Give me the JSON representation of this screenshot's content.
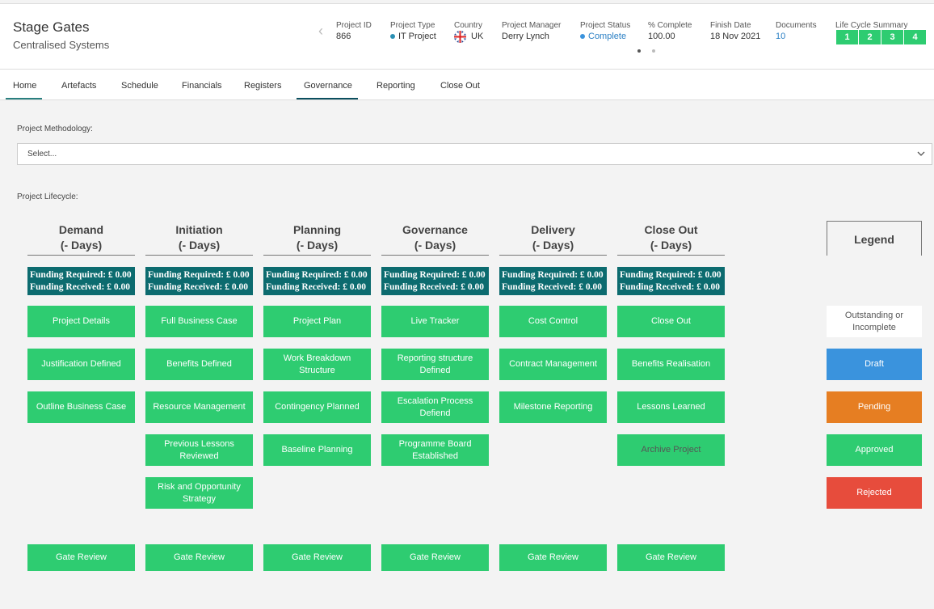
{
  "header": {
    "title": "Stage Gates",
    "subtitle": "Centralised Systems",
    "fields": [
      {
        "label": "Project ID",
        "value": "866"
      },
      {
        "label": "Project Type",
        "value": "IT Project"
      },
      {
        "label": "Country",
        "value": "UK"
      },
      {
        "label": "Project Manager",
        "value": "Derry Lynch"
      },
      {
        "label": "Project Status",
        "value": "Complete"
      },
      {
        "label": "% Complete",
        "value": "100.00"
      },
      {
        "label": "Finish Date",
        "value": "18 Nov 2021"
      },
      {
        "label": "Documents",
        "value": "10"
      }
    ],
    "lifecycle_summary": {
      "label": "Life Cycle Summary",
      "steps": [
        "1",
        "2",
        "3",
        "4"
      ]
    }
  },
  "tabs": [
    "Home",
    "Artefacts",
    "Schedule",
    "Financials",
    "Registers",
    "Governance",
    "Reporting",
    "Close Out"
  ],
  "methodology": {
    "label": "Project Methodology:",
    "placeholder": "Select..."
  },
  "lifecycle": {
    "label": "Project Lifecycle:",
    "stages": [
      {
        "name": "Demand",
        "days": "(- Days)",
        "funding_required": "Funding Required: £ 0.00",
        "funding_received": "Funding Received: £ 0.00",
        "items": [
          "Project Details",
          "Justification Defined",
          "Outline Business Case"
        ],
        "gate": "Gate Review"
      },
      {
        "name": "Initiation",
        "days": "(- Days)",
        "funding_required": "Funding Required: £ 0.00",
        "funding_received": "Funding Received: £ 0.00",
        "items": [
          "Full Business Case",
          "Benefits Defined",
          "Resource Management",
          "Previous Lessons Reviewed",
          "Risk and Opportunity Strategy"
        ],
        "gate": "Gate Review"
      },
      {
        "name": "Planning",
        "days": "(- Days)",
        "funding_required": "Funding Required: £ 0.00",
        "funding_received": "Funding Received: £ 0.00",
        "items": [
          "Project Plan",
          "Work Breakdown Structure",
          "Contingency Planned",
          "Baseline Planning"
        ],
        "gate": "Gate Review"
      },
      {
        "name": "Governance",
        "days": "(- Days)",
        "funding_required": "Funding Required: £ 0.00",
        "funding_received": "Funding Received: £ 0.00",
        "items": [
          "Live Tracker",
          "Reporting structure Defined",
          "Escalation Process Defiend",
          "Programme Board Established"
        ],
        "gate": "Gate Review"
      },
      {
        "name": "Delivery",
        "days": "(- Days)",
        "funding_required": "Funding Required: £ 0.00",
        "funding_received": "Funding Received: £ 0.00",
        "items": [
          "Cost Control",
          "Contract Management",
          "Milestone Reporting"
        ],
        "gate": "Gate Review"
      },
      {
        "name": "Close Out",
        "days": "(- Days)",
        "funding_required": "Funding Required: £ 0.00",
        "funding_received": "Funding Received: £ 0.00",
        "items": [
          "Close Out",
          "Benefits Realisation",
          "Lessons Learned",
          "Archive Project"
        ],
        "gate": "Gate Review"
      }
    ]
  },
  "legend": {
    "title": "Legend",
    "items": [
      "Outstanding or Incomplete",
      "Draft",
      "Pending",
      "Approved",
      "Rejected"
    ]
  }
}
